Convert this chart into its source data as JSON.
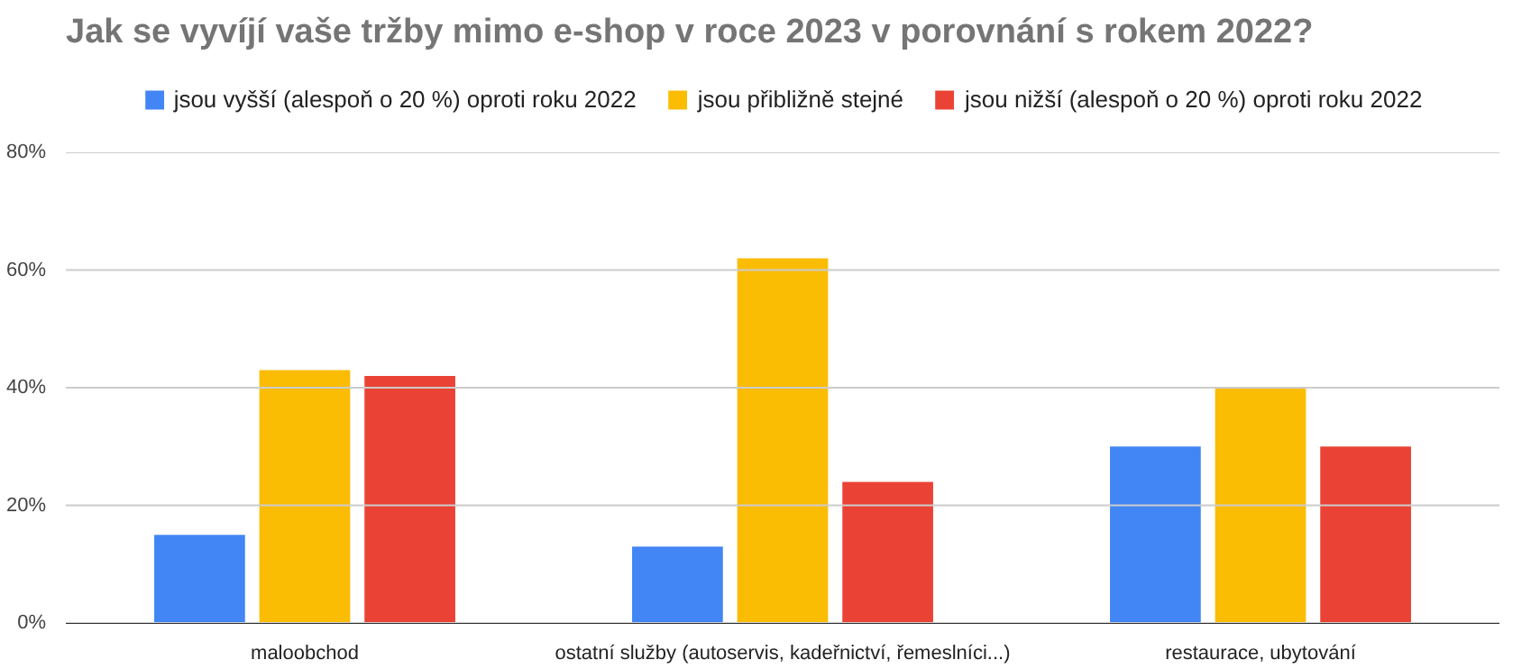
{
  "chart_data": {
    "type": "bar",
    "title": "Jak se vyvíjí vaše tržby mimo e-shop v roce 2023 v porovnání s rokem 2022?",
    "categories": [
      "maloobchod",
      "ostatní služby (autoservis, kadeřnictví, řemeslníci...)",
      "restaurace, ubytování"
    ],
    "series": [
      {
        "name": "jsou vyšší (alespoň o 20 %) oproti roku 2022",
        "color": "#4285f4",
        "values": [
          15,
          13,
          30
        ]
      },
      {
        "name": "jsou přibližně stejné",
        "color": "#fbbc04",
        "values": [
          43,
          62,
          40
        ]
      },
      {
        "name": "jsou nižší (alespoň o 20 %) oproti roku 2022",
        "color": "#ea4335",
        "values": [
          42,
          24,
          30
        ]
      }
    ],
    "ylim": [
      0,
      80
    ],
    "yticks": [
      {
        "value": 0,
        "label": "0%"
      },
      {
        "value": 20,
        "label": "20%"
      },
      {
        "value": 40,
        "label": "40%"
      },
      {
        "value": 60,
        "label": "60%"
      },
      {
        "value": 80,
        "label": "80%"
      }
    ],
    "grid": "y",
    "legend": "top"
  }
}
